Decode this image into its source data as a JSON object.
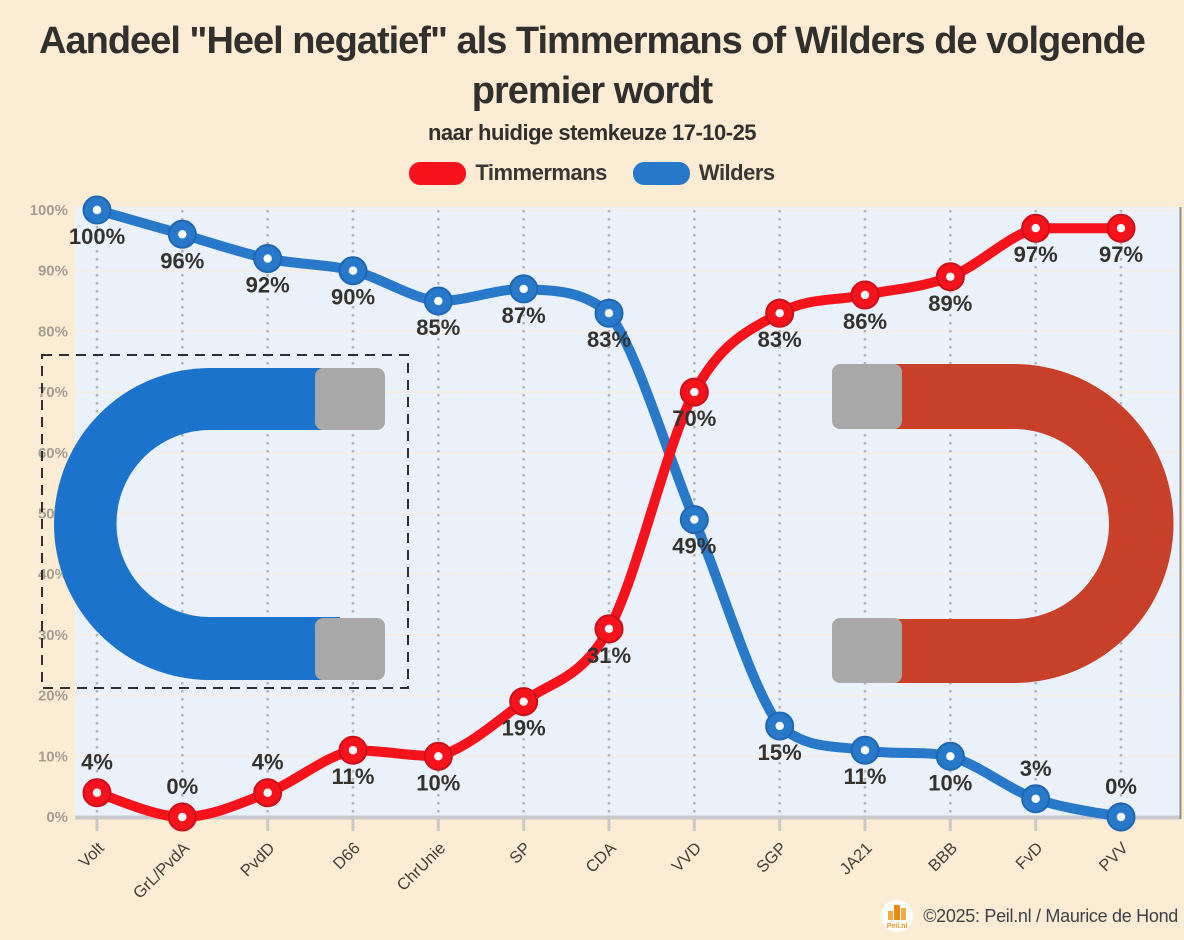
{
  "header": {
    "title": "Aandeel \"Heel negatief\" als Timmermans of Wilders de volgende premier wordt",
    "subtitle": "naar huidige stemkeuze 17-10-25"
  },
  "legend": [
    {
      "label": "Timmermans",
      "color": "#f6131b"
    },
    {
      "label": "Wilders",
      "color": "#2979ca"
    }
  ],
  "chart_data": {
    "type": "line",
    "title": "Aandeel \"Heel negatief\" als Timmermans of Wilders de volgende premier wordt",
    "subtitle": "naar huidige stemkeuze 17-10-25",
    "categories": [
      "Volt",
      "GrL/PvdA",
      "PvdD",
      "D66",
      "ChrUnie",
      "SP",
      "CDA",
      "VVD",
      "SGP",
      "JA21",
      "BBB",
      "FvD",
      "PVV"
    ],
    "series": [
      {
        "name": "Wilders",
        "color": "#2979ca",
        "marker_ring": "#1f67b3",
        "values": [
          100,
          96,
          92,
          90,
          85,
          87,
          83,
          49,
          15,
          11,
          10,
          3,
          0
        ]
      },
      {
        "name": "Timmermans",
        "color": "#f6131b",
        "marker_ring": "#cc1019",
        "values": [
          4,
          0,
          4,
          11,
          10,
          19,
          31,
          70,
          83,
          86,
          89,
          97,
          97
        ]
      }
    ],
    "ylim": [
      0,
      100
    ],
    "yticks": [
      "0%",
      "10%",
      "20%",
      "30%",
      "40%",
      "50%",
      "60%",
      "70%",
      "80%",
      "90%",
      "100%"
    ],
    "data_label_suffix": "%",
    "grid": "light horizontal lines every 10%, dotted vertical line per category",
    "legend_position": "top-center"
  },
  "colors": {
    "page_background": "#fbecd3",
    "plot_background": "#eaf1fb",
    "h_gridline": "#f4ede5",
    "v_dotted_gridline": "#b3b3b3",
    "axis_line": "#c9c9c9",
    "plot_right_border": "#8f8f8f",
    "y_tick_label": "#a69d92",
    "x_tick_label": "#46403a",
    "data_label": "#35322e",
    "selection_dash": "#2f2f2f"
  },
  "decorations": {
    "left_magnet": {
      "kind": "horseshoe-magnet-opening-right",
      "body_color": "#1b73cb",
      "tip_color": "#a8a8a8",
      "selected_with_dashed_outline": true
    },
    "right_magnet": {
      "kind": "horseshoe-magnet-opening-left",
      "body_color": "#c8402a",
      "tip_color": "#a8a8a8",
      "selected_with_dashed_outline": false
    }
  },
  "footer": {
    "copyright": "©2025: Peil.nl / Maurice de Hond",
    "logo_text": "Peil.nl"
  }
}
